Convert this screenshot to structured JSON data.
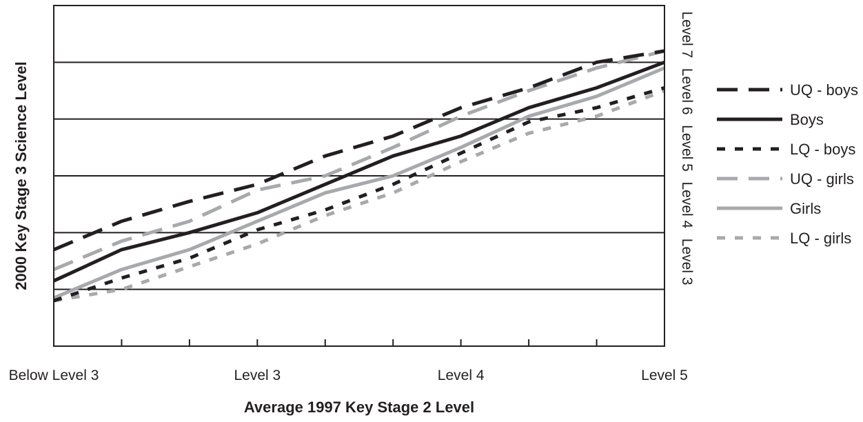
{
  "chart_data": {
    "type": "line",
    "xlabel": "Average 1997 Key Stage 2 Level",
    "ylabel": "2000 Key Stage 3 Science Level",
    "x_tick_labels": [
      "Below Level 3",
      "Level 3",
      "Level 4",
      "Level 5"
    ],
    "x_tick_label_positions": [
      0,
      3,
      6,
      9
    ],
    "x": [
      0,
      1,
      2,
      3,
      4,
      5,
      6,
      7,
      8,
      9
    ],
    "xlim": [
      0,
      9
    ],
    "y_tick_labels": [
      "Level 3",
      "Level 4",
      "Level 5",
      "Level 6",
      "Level 7"
    ],
    "y_tick_values": [
      3,
      4,
      5,
      6,
      7
    ],
    "ylim": [
      2,
      8
    ],
    "grid": "horizontal",
    "legend_position": "right",
    "series": [
      {
        "name": "UQ - boys",
        "color": "#231f20",
        "dash": "long-dash",
        "values": [
          3.7,
          4.2,
          4.55,
          4.85,
          5.35,
          5.7,
          6.2,
          6.55,
          7.0,
          7.2
        ]
      },
      {
        "name": "Boys",
        "color": "#231f20",
        "dash": "solid",
        "values": [
          3.15,
          3.7,
          4.0,
          4.35,
          4.85,
          5.35,
          5.7,
          6.2,
          6.55,
          7.0
        ]
      },
      {
        "name": "LQ - boys",
        "color": "#231f20",
        "dash": "dotted",
        "values": [
          2.8,
          3.2,
          3.55,
          4.05,
          4.4,
          4.85,
          5.4,
          5.95,
          6.2,
          6.55
        ]
      },
      {
        "name": "UQ - girls",
        "color": "#a7a9ac",
        "dash": "long-dash",
        "values": [
          3.35,
          3.85,
          4.2,
          4.75,
          5.0,
          5.5,
          6.05,
          6.5,
          6.9,
          7.2
        ]
      },
      {
        "name": "Girls",
        "color": "#a7a9ac",
        "dash": "solid",
        "values": [
          2.85,
          3.35,
          3.7,
          4.2,
          4.7,
          5.0,
          5.5,
          6.05,
          6.4,
          6.9
        ]
      },
      {
        "name": "LQ - girls",
        "color": "#a7a9ac",
        "dash": "dotted",
        "values": [
          2.8,
          3.0,
          3.4,
          3.8,
          4.3,
          4.7,
          5.25,
          5.75,
          6.05,
          6.5
        ]
      }
    ]
  }
}
